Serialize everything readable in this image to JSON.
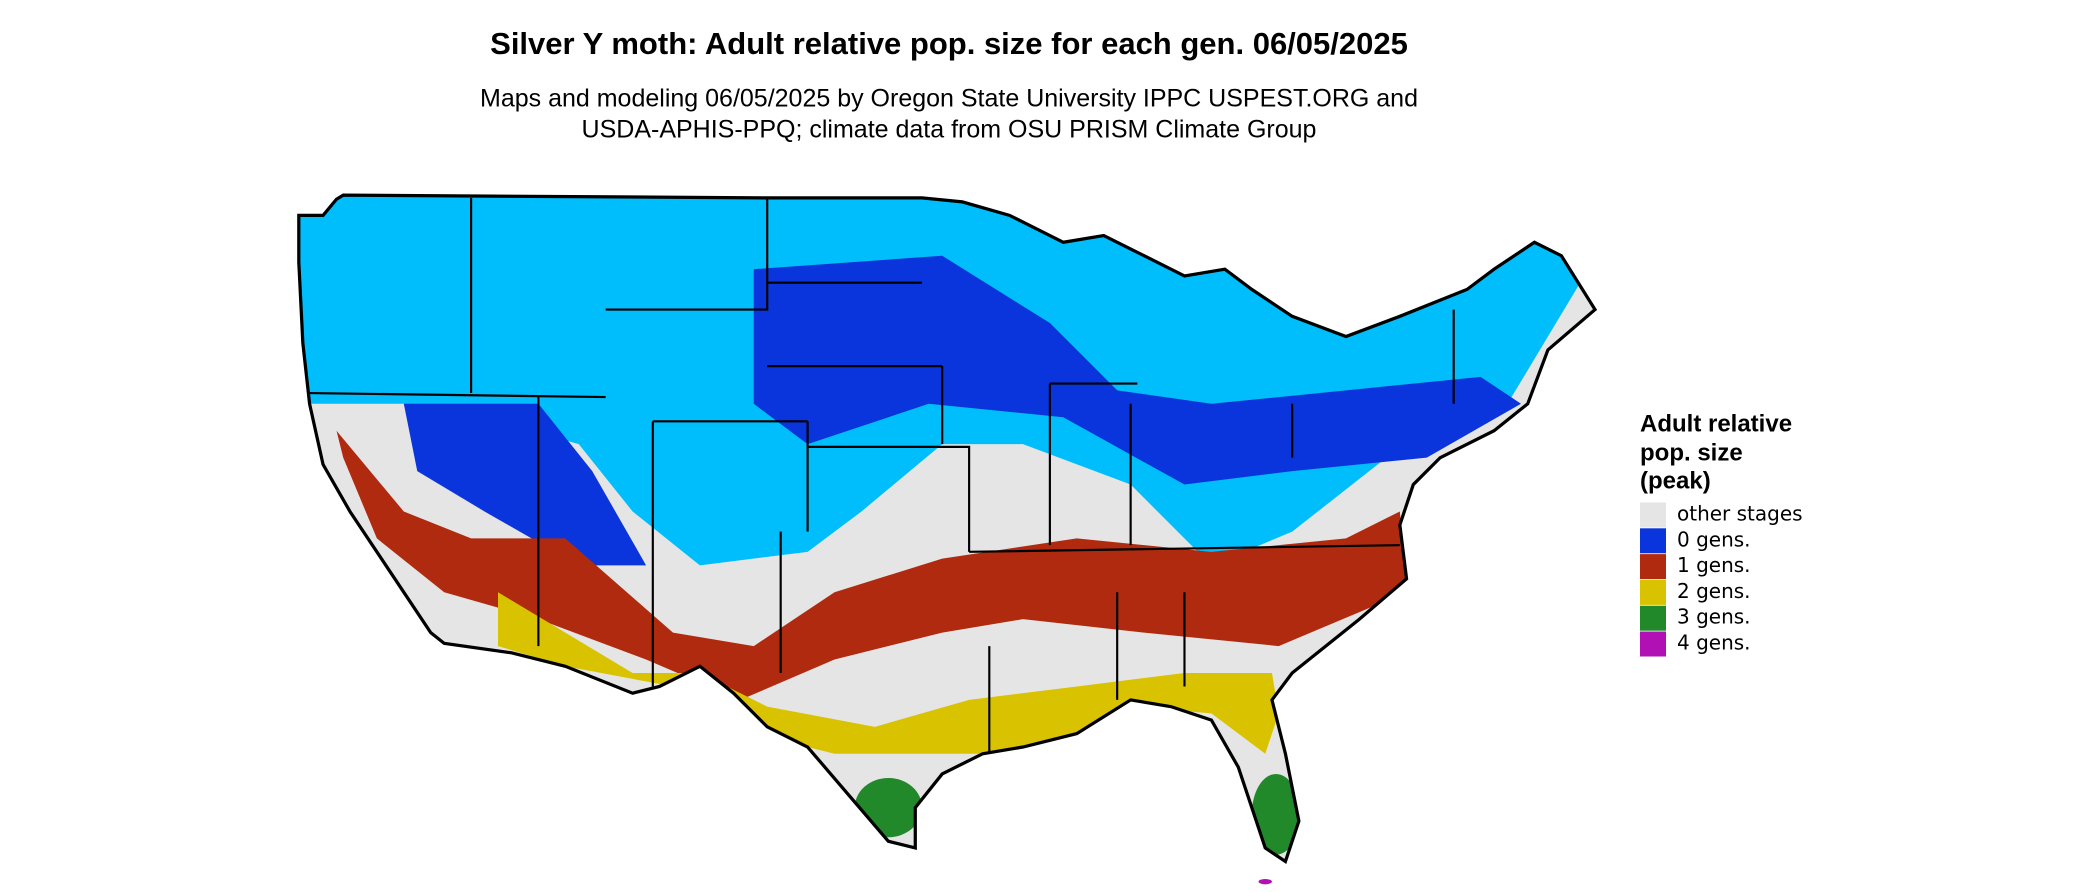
{
  "title": "Silver Y moth: Adult relative pop. size for each gen. 06/05/2025",
  "subtitle": [
    "Maps and modeling 06/05/2025 by Oregon State University IPPC USPEST.ORG and",
    "USDA-APHIS-PPQ; climate data from OSU PRISM Climate Group"
  ],
  "legend": {
    "title": [
      "Adult relative",
      "pop. size",
      "(peak)"
    ],
    "items": [
      {
        "label": "other stages",
        "color": "#e5e5e5"
      },
      {
        "label": "0 gens.",
        "color": "#0a34dc"
      },
      {
        "label": "1 gens.",
        "color": "#b02a0f"
      },
      {
        "label": "2 gens.",
        "color": "#d9c300"
      },
      {
        "label": "3 gens.",
        "color": "#22892a"
      },
      {
        "label": "4 gens.",
        "color": "#b010b4"
      }
    ]
  }
}
